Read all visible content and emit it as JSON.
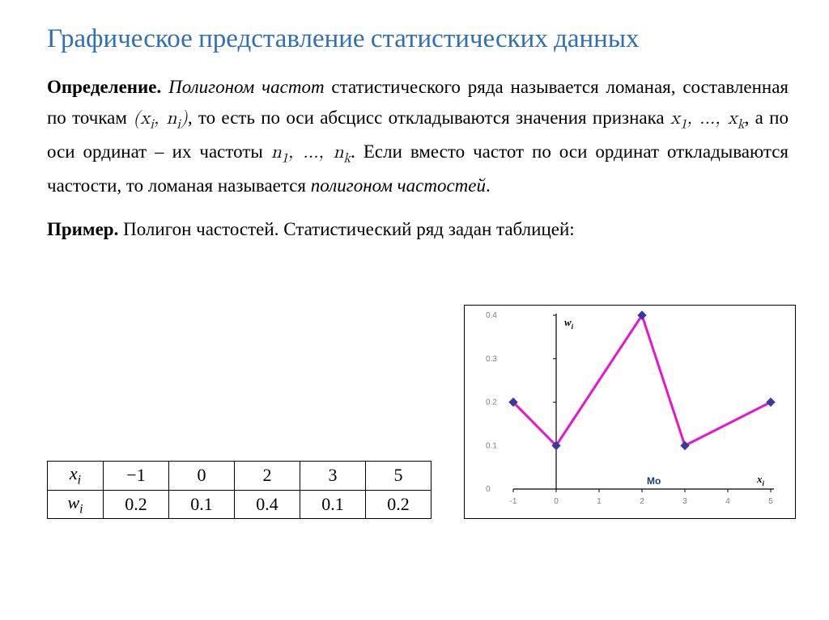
{
  "title": "Графическое представление статистических данных",
  "definition": {
    "label": "Определение.",
    "term": "Полигоном частот",
    "text_1": " статистического ряда называется ломаная, составленная по точкам ",
    "formula_1": "(xᵢ, nᵢ)",
    "text_2": ", то есть по оси абсцисс откладываются значения признака ",
    "formula_2": "x₁, …, xₖ",
    "text_3": ", а по оси ординат – их частоты ",
    "formula_3": "n₁, …, nₖ",
    "text_4": ". Если вместо частот по оси ординат откладываются частости, то ломаная называется ",
    "term_2": "полигоном частостей",
    "text_5": "."
  },
  "example": {
    "label": "Пример.",
    "text": " Полигон частостей. Статистический ряд задан таблицей:"
  },
  "table": {
    "row1_header": "xᵢ",
    "row1": [
      "−1",
      "0",
      "2",
      "3",
      "5"
    ],
    "row2_header": "wᵢ",
    "row2": [
      "0.2",
      "0.1",
      "0.4",
      "0.1",
      "0.2"
    ]
  },
  "chart": {
    "type": "line",
    "x_values": [
      -1,
      0,
      2,
      3,
      5
    ],
    "y_values": [
      0.2,
      0.1,
      0.4,
      0.1,
      0.2
    ],
    "xlim": [
      -1,
      5
    ],
    "ylim": [
      0,
      0.4
    ],
    "x_ticks": [
      -1,
      0,
      1,
      2,
      3,
      4,
      5
    ],
    "y_ticks": [
      0,
      0.1,
      0.2,
      0.3,
      0.4
    ],
    "y_tick_labels": [
      "0",
      "0.1",
      "0.2",
      "0.3",
      "0.4"
    ],
    "x_axis_label": "xᵢ",
    "y_axis_label": "wᵢ",
    "mode_label": "Mo",
    "mode_x": 2,
    "line_color": "#e815d0",
    "line_width": 3,
    "marker_color": "#3a3a9c",
    "marker_size": 5,
    "axis_color": "#000000",
    "tick_color": "#808080",
    "label_fontsize": 10,
    "axis_label_fontsize": 13,
    "background_color": "#ffffff"
  }
}
